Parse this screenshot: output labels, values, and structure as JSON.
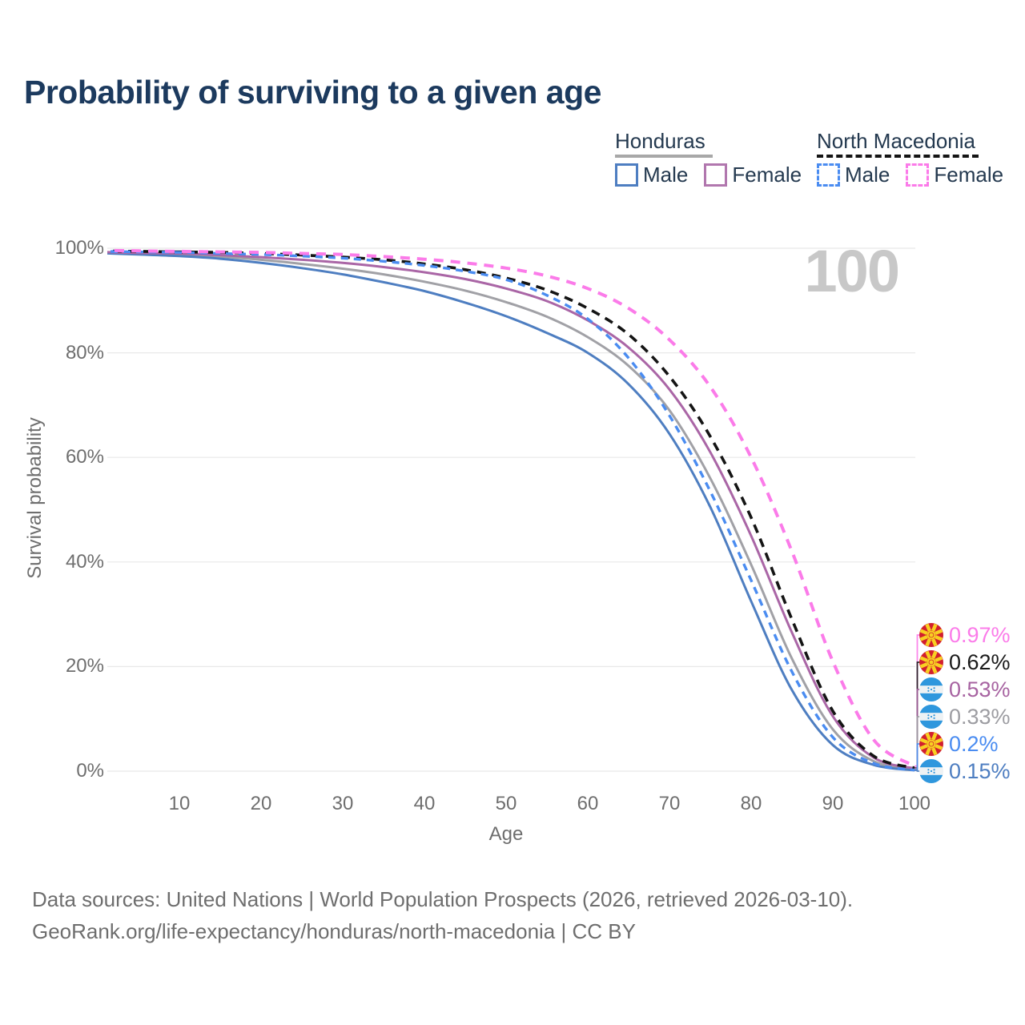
{
  "title": "Probability of surviving to a given age",
  "watermark_age": "100",
  "legend": {
    "groups": [
      {
        "name": "Honduras",
        "line_style": "solid",
        "line_color": "#a8a8a8",
        "items": [
          {
            "label": "Male",
            "color": "#4e7ec1",
            "dashed": false
          },
          {
            "label": "Female",
            "color": "#b177ae",
            "dashed": false
          }
        ]
      },
      {
        "name": "North Macedonia",
        "line_style": "dashed",
        "line_color": "#141414",
        "items": [
          {
            "label": "Male",
            "color": "#4a8cf1",
            "dashed": true
          },
          {
            "label": "Female",
            "color": "#fb7be9",
            "dashed": true
          }
        ]
      }
    ]
  },
  "axes": {
    "x_label": "Age",
    "y_label": "Survival probability",
    "x_ticks": [
      "10",
      "20",
      "30",
      "40",
      "50",
      "60",
      "70",
      "80",
      "90",
      "100"
    ],
    "y_ticks": [
      "0%",
      "20%",
      "40%",
      "60%",
      "80%",
      "100%"
    ]
  },
  "chart_data": {
    "type": "line",
    "title": "Probability of surviving to a given age",
    "xlabel": "Age",
    "ylabel": "Survival probability",
    "xlim": [
      0,
      100
    ],
    "ylim": [
      0,
      100
    ],
    "grid": true,
    "legend_position": "top-right",
    "x": [
      0,
      5,
      10,
      15,
      20,
      25,
      30,
      35,
      40,
      45,
      50,
      55,
      60,
      65,
      70,
      75,
      80,
      85,
      90,
      95,
      100
    ],
    "series": [
      {
        "name": "Honduras Male",
        "country": "Honduras",
        "style": "solid",
        "color": "#4e7ec1",
        "width": 3,
        "end_value_pct": 0.15,
        "values": [
          99.1,
          98.8,
          98.5,
          98.0,
          97.2,
          96.2,
          95.0,
          93.5,
          91.8,
          89.6,
          87.0,
          83.8,
          80.0,
          74.0,
          64.5,
          50.5,
          32.5,
          15.5,
          5.0,
          1.2,
          0.15
        ]
      },
      {
        "name": "Honduras Female",
        "country": "Honduras",
        "style": "solid",
        "color": "#aa66a6",
        "width": 3,
        "end_value_pct": 0.53,
        "values": [
          99.3,
          99.1,
          99.0,
          98.7,
          98.3,
          97.8,
          97.2,
          96.4,
          95.4,
          94.1,
          92.3,
          89.9,
          86.2,
          81.0,
          73.0,
          61.0,
          45.0,
          26.5,
          10.5,
          2.6,
          0.53
        ]
      },
      {
        "name": "Honduras Total",
        "country": "Honduras",
        "style": "solid",
        "color": "#a1a1a6",
        "width": 3,
        "end_value_pct": 0.33,
        "values": [
          99.2,
          99.0,
          98.8,
          98.4,
          97.8,
          97.0,
          96.1,
          95.0,
          93.6,
          91.9,
          89.7,
          86.9,
          83.0,
          77.5,
          69.0,
          56.0,
          39.5,
          21.5,
          8.0,
          1.9,
          0.33
        ]
      },
      {
        "name": "North Macedonia Male",
        "country": "North Macedonia",
        "style": "dashed",
        "color": "#4a8cf1",
        "width": 3.4,
        "dash": [
          9,
          7
        ],
        "end_value_pct": 0.2,
        "values": [
          99.4,
          99.3,
          99.2,
          99.0,
          98.8,
          98.5,
          98.1,
          97.5,
          96.7,
          95.6,
          94.0,
          91.0,
          86.5,
          79.0,
          68.0,
          53.5,
          36.5,
          19.0,
          6.5,
          1.5,
          0.2
        ]
      },
      {
        "name": "North Macedonia Total",
        "country": "North Macedonia",
        "style": "dashed",
        "color": "#141414",
        "width": 3.6,
        "dash": [
          11,
          8
        ],
        "end_value_pct": 0.62,
        "values": [
          99.5,
          99.4,
          99.3,
          99.2,
          99.0,
          98.7,
          98.3,
          97.8,
          97.0,
          95.9,
          94.3,
          92.0,
          88.5,
          83.5,
          75.5,
          64.0,
          48.5,
          29.0,
          11.5,
          2.9,
          0.62
        ]
      },
      {
        "name": "North Macedonia Female",
        "country": "North Macedonia",
        "style": "dashed",
        "color": "#fb7be9",
        "width": 4,
        "dash": [
          12,
          9
        ],
        "end_value_pct": 0.97,
        "values": [
          99.6,
          99.5,
          99.4,
          99.3,
          99.2,
          99.0,
          98.8,
          98.4,
          97.9,
          97.2,
          96.2,
          94.7,
          92.3,
          88.5,
          82.5,
          73.5,
          60.0,
          42.0,
          21.0,
          6.0,
          0.97
        ]
      }
    ],
    "end_labels": [
      {
        "series": "North Macedonia Female",
        "flag": "north-macedonia",
        "value": "0.97%",
        "color": "#fb7be9"
      },
      {
        "series": "North Macedonia Total",
        "flag": "north-macedonia",
        "value": "0.62%",
        "color": "#1a1a1a"
      },
      {
        "series": "Honduras Female",
        "flag": "honduras",
        "value": "0.53%",
        "color": "#a763a1"
      },
      {
        "series": "Honduras Total",
        "flag": "honduras",
        "value": "0.33%",
        "color": "#9d9da2"
      },
      {
        "series": "North Macedonia Male",
        "flag": "north-macedonia",
        "value": "0.2%",
        "color": "#4a8cf1"
      },
      {
        "series": "Honduras Male",
        "flag": "honduras",
        "value": "0.15%",
        "color": "#4e7ec1"
      }
    ]
  },
  "footer": {
    "line1": "Data sources: United Nations | World Population Prospects (2026, retrieved 2026-03-10).",
    "line2": "GeoRank.org/life-expectancy/honduras/north-macedonia | CC BY"
  }
}
